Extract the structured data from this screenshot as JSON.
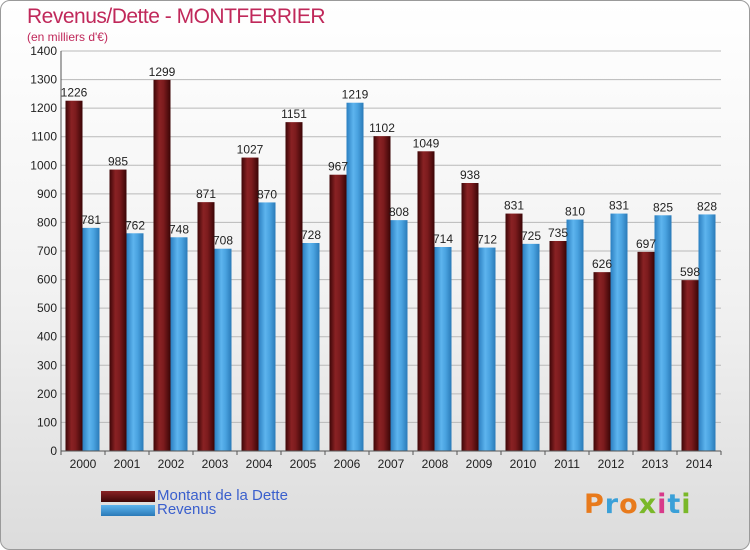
{
  "chart_data": {
    "type": "bar",
    "title": "Revenus/Dette - MONTFERRIER",
    "subtitle": "(en milliers d'€)",
    "categories": [
      "2000",
      "2001",
      "2002",
      "2003",
      "2004",
      "2005",
      "2006",
      "2007",
      "2008",
      "2009",
      "2010",
      "2011",
      "2012",
      "2013",
      "2014"
    ],
    "series": [
      {
        "name": "Montant de la Dette",
        "color": "#7a1a1c",
        "values": [
          1226,
          985,
          1299,
          871,
          1027,
          1151,
          967,
          1102,
          1049,
          938,
          831,
          735,
          626,
          697,
          598
        ]
      },
      {
        "name": "Revenus",
        "color": "#4aa3e0",
        "values": [
          781,
          762,
          748,
          708,
          870,
          728,
          1219,
          808,
          714,
          712,
          725,
          810,
          831,
          825,
          828
        ]
      }
    ],
    "ylim": [
      0,
      1400
    ],
    "yticks": [
      0,
      100,
      200,
      300,
      400,
      500,
      600,
      700,
      800,
      900,
      1000,
      1100,
      1200,
      1300,
      1400
    ],
    "grid": true,
    "legend": "bottom-left"
  },
  "legend": {
    "debt_label": "Montant de la Dette",
    "revenue_label": "Revenus"
  },
  "branding": {
    "logo_text": "Proxiti"
  }
}
